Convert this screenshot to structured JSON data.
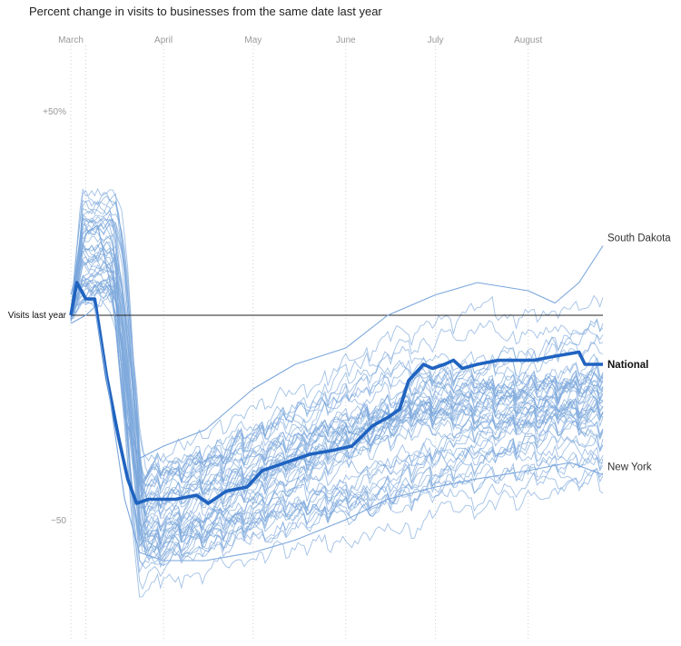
{
  "chart_data": {
    "type": "line",
    "title": "Percent change in visits to businesses from the same date last year",
    "x_axis": {
      "type": "date",
      "start": "2020-03-01",
      "end": "2020-08-26",
      "month_labels": [
        {
          "label": "March",
          "date": "2020-03-01"
        },
        {
          "label": "April",
          "date": "2020-04-01"
        },
        {
          "label": "May",
          "date": "2020-05-01"
        },
        {
          "label": "June",
          "date": "2020-06-01"
        },
        {
          "label": "July",
          "date": "2020-07-01"
        },
        {
          "label": "August",
          "date": "2020-08-01"
        }
      ]
    },
    "y_axis": {
      "unit": "percent",
      "ylim": [
        -70,
        78
      ],
      "ticks": [
        {
          "label": "+50%",
          "value": 50
        },
        {
          "label": "−50",
          "value": -50
        }
      ]
    },
    "baseline": {
      "label": "Visits last year",
      "value": 0
    },
    "grid": "vertical dotted lines at month starts",
    "highlight_color": "#1f63c0",
    "background_series_color": "#7aa6dc",
    "series": [
      {
        "name": "South Dakota",
        "points": [
          [
            "2020-03-01",
            5
          ],
          [
            "2020-03-06",
            20
          ],
          [
            "2020-03-10",
            22
          ],
          [
            "2020-03-15",
            5
          ],
          [
            "2020-03-19",
            -25
          ],
          [
            "2020-03-24",
            -35
          ],
          [
            "2020-04-01",
            -32
          ],
          [
            "2020-04-15",
            -28
          ],
          [
            "2020-05-01",
            -18
          ],
          [
            "2020-05-15",
            -12
          ],
          [
            "2020-06-01",
            -8
          ],
          [
            "2020-06-15",
            0
          ],
          [
            "2020-07-01",
            5
          ],
          [
            "2020-07-15",
            8
          ],
          [
            "2020-08-01",
            6
          ],
          [
            "2020-08-10",
            3
          ],
          [
            "2020-08-18",
            8
          ],
          [
            "2020-08-26",
            17
          ]
        ]
      },
      {
        "name": "National",
        "points": [
          [
            "2020-03-01",
            0
          ],
          [
            "2020-03-03",
            8
          ],
          [
            "2020-03-06",
            4
          ],
          [
            "2020-03-09",
            4
          ],
          [
            "2020-03-13",
            -15
          ],
          [
            "2020-03-17",
            -30
          ],
          [
            "2020-03-20",
            -40
          ],
          [
            "2020-03-23",
            -46
          ],
          [
            "2020-03-27",
            -45
          ],
          [
            "2020-04-05",
            -45
          ],
          [
            "2020-04-12",
            -44
          ],
          [
            "2020-04-16",
            -46
          ],
          [
            "2020-04-22",
            -43
          ],
          [
            "2020-04-29",
            -42
          ],
          [
            "2020-05-04",
            -38
          ],
          [
            "2020-05-12",
            -36
          ],
          [
            "2020-05-20",
            -34
          ],
          [
            "2020-05-28",
            -33
          ],
          [
            "2020-06-03",
            -32
          ],
          [
            "2020-06-10",
            -27
          ],
          [
            "2020-06-15",
            -25
          ],
          [
            "2020-06-19",
            -23
          ],
          [
            "2020-06-22",
            -16
          ],
          [
            "2020-06-27",
            -12
          ],
          [
            "2020-06-30",
            -13
          ],
          [
            "2020-07-04",
            -12
          ],
          [
            "2020-07-07",
            -11
          ],
          [
            "2020-07-10",
            -13
          ],
          [
            "2020-07-15",
            -12
          ],
          [
            "2020-07-22",
            -11
          ],
          [
            "2020-07-28",
            -11
          ],
          [
            "2020-08-03",
            -11
          ],
          [
            "2020-08-10",
            -10
          ],
          [
            "2020-08-18",
            -9
          ],
          [
            "2020-08-20",
            -12
          ],
          [
            "2020-08-26",
            -12
          ]
        ]
      },
      {
        "name": "New York",
        "points": [
          [
            "2020-03-01",
            -2
          ],
          [
            "2020-03-06",
            0
          ],
          [
            "2020-03-09",
            2
          ],
          [
            "2020-03-14",
            -20
          ],
          [
            "2020-03-19",
            -45
          ],
          [
            "2020-03-24",
            -58
          ],
          [
            "2020-04-01",
            -60
          ],
          [
            "2020-04-15",
            -60
          ],
          [
            "2020-05-01",
            -58
          ],
          [
            "2020-05-15",
            -55
          ],
          [
            "2020-06-01",
            -50
          ],
          [
            "2020-06-15",
            -45
          ],
          [
            "2020-07-01",
            -42
          ],
          [
            "2020-07-15",
            -40
          ],
          [
            "2020-08-01",
            -38
          ],
          [
            "2020-08-15",
            -36
          ],
          [
            "2020-08-26",
            -39
          ]
        ]
      }
    ],
    "background_series_note": "~48 additional unlabeled state lines in light blue",
    "annotations": [
      {
        "text": "South Dakota",
        "series": "South Dakota",
        "weight": "normal"
      },
      {
        "text": "National",
        "series": "National",
        "weight": "bold"
      },
      {
        "text": "New York",
        "series": "New York",
        "weight": "normal"
      }
    ]
  }
}
